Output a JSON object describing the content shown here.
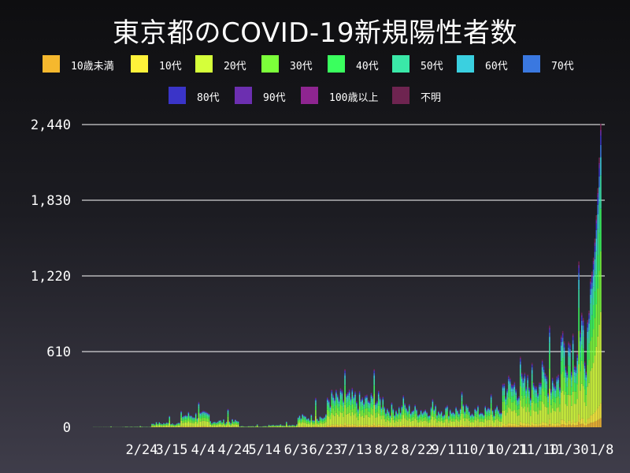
{
  "title": "東京都のCOVID-19新規陽性者数",
  "colors": {
    "background_top": "#0e0e10",
    "background_bottom": "#3f3d4a",
    "gridline": "#ffffff"
  },
  "chart_data": {
    "type": "bar",
    "stacked": true,
    "title": "東京都のCOVID-19新規陽性者数",
    "xlabel": "",
    "ylabel": "",
    "ylim": [
      0,
      2440
    ],
    "yticks": [
      "0",
      "610",
      "1,220",
      "1,830",
      "2,440"
    ],
    "ytick_values": [
      0,
      610,
      1220,
      1830,
      2440
    ],
    "xticks": [
      "2/24",
      "3/15",
      "4/4",
      "4/24",
      "5/14",
      "6/3",
      "6/23",
      "7/13",
      "8/2",
      "8/22",
      "9/11",
      "10/1",
      "10/21",
      "11/10",
      "11/30",
      "1/8"
    ],
    "grid": true,
    "legend_position": "top",
    "legend": [
      {
        "name": "10歳未満",
        "color": "#f5b82e"
      },
      {
        "name": "10代",
        "color": "#fff23a"
      },
      {
        "name": "20代",
        "color": "#d5ff3a"
      },
      {
        "name": "30代",
        "color": "#7cff3a"
      },
      {
        "name": "40代",
        "color": "#3aff5e"
      },
      {
        "name": "50代",
        "color": "#3ae8a8"
      },
      {
        "name": "60代",
        "color": "#3ad0e0"
      },
      {
        "name": "70代",
        "color": "#3a78e0"
      },
      {
        "name": "80代",
        "color": "#3a34c8"
      },
      {
        "name": "90代",
        "color": "#6c2fb0"
      },
      {
        "name": "100歳以上",
        "color": "#8e2590"
      },
      {
        "name": "不明",
        "color": "#6e2450"
      }
    ],
    "daily_totals_approx": [
      {
        "period": "1/24-2/23",
        "typical": 2,
        "peak": 8
      },
      {
        "period": "2/24-3/14",
        "typical": 5,
        "peak": 12
      },
      {
        "period": "3/15-4/3",
        "typical": 40,
        "peak": 95
      },
      {
        "period": "4/4-4/23",
        "typical": 120,
        "peak": 206
      },
      {
        "period": "4/24-5/13",
        "typical": 60,
        "peak": 150
      },
      {
        "period": "5/14-6/2",
        "typical": 10,
        "peak": 25
      },
      {
        "period": "6/3-6/22",
        "typical": 25,
        "peak": 48
      },
      {
        "period": "6/23-7/12",
        "typical": 100,
        "peak": 240
      },
      {
        "period": "7/13-8/1",
        "typical": 280,
        "peak": 470
      },
      {
        "period": "8/2-8/21",
        "typical": 260,
        "peak": 470
      },
      {
        "period": "8/22-9/10",
        "typical": 180,
        "peak": 260
      },
      {
        "period": "9/11-9/30",
        "typical": 170,
        "peak": 230
      },
      {
        "period": "10/1-10/20",
        "typical": 170,
        "peak": 290
      },
      {
        "period": "10/21-11/9",
        "typical": 160,
        "peak": 270
      },
      {
        "period": "11/10-11/29",
        "typical": 400,
        "peak": 570
      },
      {
        "period": "11/30-12/19",
        "typical": 480,
        "peak": 820
      },
      {
        "period": "12/20-12/31",
        "typical": 820,
        "peak": 1337
      },
      {
        "period": "1/1-1/8",
        "typical": 1200,
        "peak": 2447
      }
    ]
  }
}
